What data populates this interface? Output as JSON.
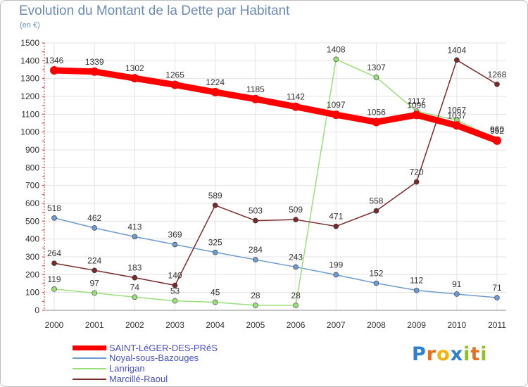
{
  "title": "Evolution du Montant de la Dette par Habitant",
  "unit_label": "(en €)",
  "logo": {
    "letters": [
      "P",
      "r",
      "o",
      "x",
      "i",
      "t",
      "i"
    ],
    "colors": [
      "#2d7fcf",
      "#e86d1f",
      "#f1b40e",
      "#2d7fcf",
      "#8fbf2b",
      "#e86d1f",
      "#8fbf2b"
    ]
  },
  "chart_data": {
    "type": "line",
    "title": "Evolution du Montant de la Dette par Habitant",
    "ylabel": "(en €)",
    "xlabel": "",
    "ylim": [
      0,
      1500
    ],
    "yticks": [
      "0",
      "100",
      "200",
      "300",
      "400",
      "500",
      "600",
      "700",
      "800",
      "900",
      "1000",
      "1100",
      "1200",
      "1300",
      "1400",
      "1500"
    ],
    "x": [
      "2000",
      "2001",
      "2002",
      "2003",
      "2004",
      "2005",
      "2006",
      "2007",
      "2008",
      "2009",
      "2010",
      "2011"
    ],
    "grid": true,
    "legend_position": "bottom-left",
    "series": [
      {
        "name": "SAINT-LéGER-DES-PRéS",
        "color": "#ff0000",
        "bold": true,
        "values": [
          1346,
          1339,
          1302,
          1265,
          1224,
          1185,
          1142,
          1097,
          1056,
          1096,
          1037,
          952
        ],
        "labels": [
          "1346",
          "1339",
          "1302",
          "1265",
          "1224",
          "1185",
          "1142",
          "1097",
          "1056",
          "1096",
          "1037",
          "952"
        ]
      },
      {
        "name": "Noyal-sous-Bazouges",
        "color": "#6d9cd0",
        "bold": false,
        "values": [
          518,
          462,
          413,
          369,
          325,
          284,
          243,
          199,
          152,
          112,
          91,
          71
        ],
        "labels": [
          "518",
          "462",
          "413",
          "369",
          "325",
          "284",
          "243",
          "199",
          "152",
          "112",
          "91",
          "71"
        ]
      },
      {
        "name": "Lanrigan",
        "color": "#99e07a",
        "bold": false,
        "values": [
          119,
          97,
          74,
          53,
          45,
          28,
          28,
          1408,
          1307,
          1117,
          1067,
          960
        ],
        "labels": [
          "119",
          "97",
          "74",
          "53",
          "45",
          "28",
          "28",
          "1408",
          "1307",
          "1117",
          "1067",
          "960"
        ]
      },
      {
        "name": "Marcillé-Raoul",
        "color": "#7a2a2a",
        "bold": false,
        "values": [
          264,
          224,
          183,
          140,
          589,
          503,
          509,
          471,
          558,
          720,
          1404,
          1268
        ],
        "labels": [
          "264",
          "224",
          "183",
          "140",
          "589",
          "503",
          "509",
          "471",
          "558",
          "720",
          "1404",
          "1268"
        ]
      }
    ]
  }
}
